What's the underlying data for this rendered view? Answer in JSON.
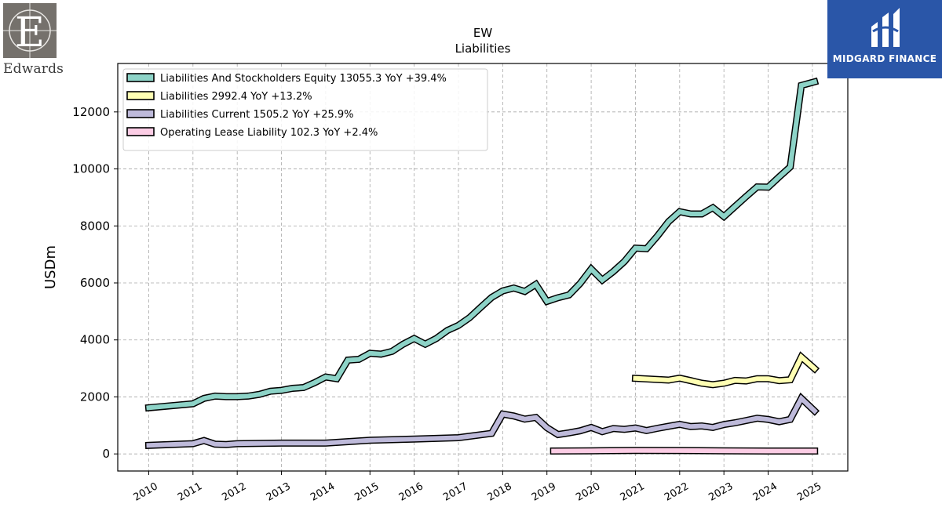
{
  "logos": {
    "left_text": "Edwards",
    "right_text": "MIDGARD FINANCE"
  },
  "chart_data": {
    "type": "line",
    "title": "EW",
    "subtitle": "Liabilities",
    "xlabel": "",
    "ylabel": "USDm",
    "xlim": [
      2009.3,
      2025.8
    ],
    "ylim": [
      -600,
      13700
    ],
    "yticks": [
      0,
      2000,
      4000,
      6000,
      8000,
      10000,
      12000
    ],
    "xticks": [
      "2010",
      "2011",
      "2012",
      "2013",
      "2014",
      "2015",
      "2016",
      "2017",
      "2018",
      "2019",
      "2020",
      "2021",
      "2022",
      "2023",
      "2024",
      "2025"
    ],
    "grid": true,
    "legend_position": "top-left",
    "series": [
      {
        "name": "Liabilities And Stockholders Equity  13055.3 YoY +39.4%",
        "color": "#8dd3c7",
        "points": [
          [
            2010.0,
            1620
          ],
          [
            2011.0,
            1760
          ],
          [
            2011.25,
            1950
          ],
          [
            2011.5,
            2030
          ],
          [
            2011.75,
            2010
          ],
          [
            2012.0,
            2010
          ],
          [
            2012.25,
            2030
          ],
          [
            2012.5,
            2090
          ],
          [
            2012.75,
            2200
          ],
          [
            2013.0,
            2230
          ],
          [
            2013.25,
            2300
          ],
          [
            2013.5,
            2330
          ],
          [
            2013.75,
            2500
          ],
          [
            2014.0,
            2700
          ],
          [
            2014.25,
            2640
          ],
          [
            2014.5,
            3290
          ],
          [
            2014.75,
            3320
          ],
          [
            2015.0,
            3530
          ],
          [
            2015.25,
            3500
          ],
          [
            2015.5,
            3600
          ],
          [
            2015.75,
            3850
          ],
          [
            2016.0,
            4050
          ],
          [
            2016.25,
            3850
          ],
          [
            2016.5,
            4050
          ],
          [
            2016.75,
            4330
          ],
          [
            2017.0,
            4510
          ],
          [
            2017.25,
            4780
          ],
          [
            2017.5,
            5140
          ],
          [
            2017.75,
            5490
          ],
          [
            2018.0,
            5720
          ],
          [
            2018.25,
            5820
          ],
          [
            2018.5,
            5700
          ],
          [
            2018.75,
            5950
          ],
          [
            2019.0,
            5350
          ],
          [
            2019.25,
            5480
          ],
          [
            2019.5,
            5580
          ],
          [
            2019.75,
            5980
          ],
          [
            2020.0,
            6490
          ],
          [
            2020.25,
            6100
          ],
          [
            2020.5,
            6400
          ],
          [
            2020.75,
            6750
          ],
          [
            2021.0,
            7220
          ],
          [
            2021.25,
            7200
          ],
          [
            2021.5,
            7650
          ],
          [
            2021.75,
            8150
          ],
          [
            2022.0,
            8500
          ],
          [
            2022.25,
            8420
          ],
          [
            2022.5,
            8420
          ],
          [
            2022.75,
            8640
          ],
          [
            2023.0,
            8330
          ],
          [
            2023.25,
            8680
          ],
          [
            2023.5,
            9030
          ],
          [
            2023.75,
            9370
          ],
          [
            2024.0,
            9360
          ],
          [
            2024.25,
            9720
          ],
          [
            2024.5,
            10070
          ],
          [
            2024.75,
            12930
          ],
          [
            2025.05,
            13055.3
          ]
        ]
      },
      {
        "name": "Liabilities  2992.4 YoY +13.2%",
        "color": "#ffffb3",
        "points": [
          [
            2021.0,
            2650
          ],
          [
            2021.75,
            2590
          ],
          [
            2022.0,
            2660
          ],
          [
            2022.25,
            2570
          ],
          [
            2022.5,
            2480
          ],
          [
            2022.75,
            2430
          ],
          [
            2023.0,
            2480
          ],
          [
            2023.25,
            2580
          ],
          [
            2023.5,
            2560
          ],
          [
            2023.75,
            2640
          ],
          [
            2024.0,
            2640
          ],
          [
            2024.25,
            2570
          ],
          [
            2024.5,
            2600
          ],
          [
            2024.75,
            3400
          ],
          [
            2025.05,
            2992.4
          ]
        ]
      },
      {
        "name": "Liabilities Current  1505.2 YoY +25.9%",
        "color": "#bebada",
        "points": [
          [
            2010.0,
            300
          ],
          [
            2011.0,
            360
          ],
          [
            2011.25,
            470
          ],
          [
            2011.5,
            340
          ],
          [
            2011.75,
            330
          ],
          [
            2012.0,
            360
          ],
          [
            2013.0,
            380
          ],
          [
            2014.0,
            380
          ],
          [
            2015.0,
            480
          ],
          [
            2016.0,
            520
          ],
          [
            2017.0,
            570
          ],
          [
            2017.75,
            720
          ],
          [
            2018.0,
            1400
          ],
          [
            2018.25,
            1330
          ],
          [
            2018.5,
            1220
          ],
          [
            2018.75,
            1280
          ],
          [
            2019.0,
            920
          ],
          [
            2019.25,
            680
          ],
          [
            2019.5,
            740
          ],
          [
            2019.75,
            810
          ],
          [
            2020.0,
            930
          ],
          [
            2020.25,
            780
          ],
          [
            2020.5,
            890
          ],
          [
            2020.75,
            860
          ],
          [
            2021.0,
            910
          ],
          [
            2021.25,
            820
          ],
          [
            2021.5,
            900
          ],
          [
            2021.75,
            970
          ],
          [
            2022.0,
            1040
          ],
          [
            2022.25,
            960
          ],
          [
            2022.5,
            980
          ],
          [
            2022.75,
            930
          ],
          [
            2023.0,
            1030
          ],
          [
            2023.25,
            1090
          ],
          [
            2023.5,
            1170
          ],
          [
            2023.75,
            1250
          ],
          [
            2024.0,
            1210
          ],
          [
            2024.25,
            1130
          ],
          [
            2024.5,
            1210
          ],
          [
            2024.75,
            1950
          ],
          [
            2025.05,
            1505.2
          ]
        ]
      },
      {
        "name": "Operating Lease Liability  102.3 YoY +2.4%",
        "color": "#fccde5",
        "points": [
          [
            2019.15,
            100
          ],
          [
            2020.0,
            110
          ],
          [
            2021.0,
            120
          ],
          [
            2022.0,
            118
          ],
          [
            2023.0,
            110
          ],
          [
            2024.0,
            100
          ],
          [
            2025.05,
            102.3
          ]
        ]
      }
    ]
  }
}
